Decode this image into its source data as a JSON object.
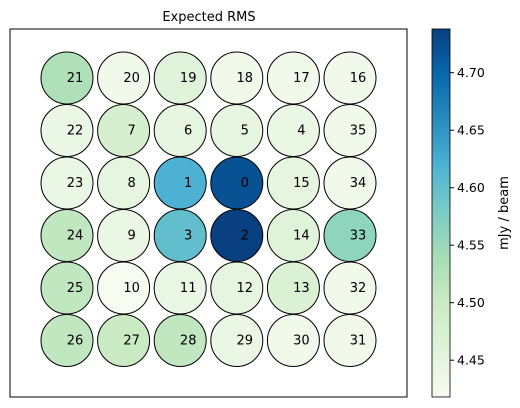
{
  "chart_data": {
    "type": "heatmap",
    "title": "Expected RMS",
    "colorbar": {
      "label": "mJy / beam",
      "min": 4.418,
      "max": 4.738,
      "ticks": [
        4.45,
        4.5,
        4.55,
        4.6,
        4.65,
        4.7
      ],
      "tick_labels": [
        "4.45",
        "4.50",
        "4.55",
        "4.60",
        "4.65",
        "4.70"
      ],
      "colormap": "GnBu"
    },
    "beams": [
      {
        "id": "21",
        "row": 0,
        "col": 0,
        "value": 4.53
      },
      {
        "id": "20",
        "row": 0,
        "col": 1,
        "value": 4.43
      },
      {
        "id": "19",
        "row": 0,
        "col": 2,
        "value": 4.46
      },
      {
        "id": "18",
        "row": 0,
        "col": 3,
        "value": 4.43
      },
      {
        "id": "17",
        "row": 0,
        "col": 4,
        "value": 4.43
      },
      {
        "id": "16",
        "row": 0,
        "col": 5,
        "value": 4.43
      },
      {
        "id": "22",
        "row": 1,
        "col": 0,
        "value": 4.44
      },
      {
        "id": "7",
        "row": 1,
        "col": 1,
        "value": 4.48
      },
      {
        "id": "6",
        "row": 1,
        "col": 2,
        "value": 4.45
      },
      {
        "id": "5",
        "row": 1,
        "col": 3,
        "value": 4.45
      },
      {
        "id": "4",
        "row": 1,
        "col": 4,
        "value": 4.44
      },
      {
        "id": "35",
        "row": 1,
        "col": 5,
        "value": 4.43
      },
      {
        "id": "23",
        "row": 2,
        "col": 0,
        "value": 4.44
      },
      {
        "id": "8",
        "row": 2,
        "col": 1,
        "value": 4.45
      },
      {
        "id": "1",
        "row": 2,
        "col": 2,
        "value": 4.62
      },
      {
        "id": "0",
        "row": 2,
        "col": 3,
        "value": 4.72
      },
      {
        "id": "15",
        "row": 2,
        "col": 4,
        "value": 4.45
      },
      {
        "id": "34",
        "row": 2,
        "col": 5,
        "value": 4.43
      },
      {
        "id": "24",
        "row": 3,
        "col": 0,
        "value": 4.51
      },
      {
        "id": "9",
        "row": 3,
        "col": 1,
        "value": 4.44
      },
      {
        "id": "3",
        "row": 3,
        "col": 2,
        "value": 4.6
      },
      {
        "id": "2",
        "row": 3,
        "col": 3,
        "value": 4.74
      },
      {
        "id": "14",
        "row": 3,
        "col": 4,
        "value": 4.46
      },
      {
        "id": "33",
        "row": 3,
        "col": 5,
        "value": 4.56
      },
      {
        "id": "25",
        "row": 4,
        "col": 0,
        "value": 4.51
      },
      {
        "id": "10",
        "row": 4,
        "col": 1,
        "value": 4.42
      },
      {
        "id": "11",
        "row": 4,
        "col": 2,
        "value": 4.44
      },
      {
        "id": "12",
        "row": 4,
        "col": 3,
        "value": 4.45
      },
      {
        "id": "13",
        "row": 4,
        "col": 4,
        "value": 4.47
      },
      {
        "id": "32",
        "row": 4,
        "col": 5,
        "value": 4.43
      },
      {
        "id": "26",
        "row": 5,
        "col": 0,
        "value": 4.51
      },
      {
        "id": "27",
        "row": 5,
        "col": 1,
        "value": 4.5
      },
      {
        "id": "28",
        "row": 5,
        "col": 2,
        "value": 4.51
      },
      {
        "id": "29",
        "row": 5,
        "col": 3,
        "value": 4.44
      },
      {
        "id": "30",
        "row": 5,
        "col": 4,
        "value": 4.43
      },
      {
        "id": "31",
        "row": 5,
        "col": 5,
        "value": 4.43
      }
    ]
  }
}
